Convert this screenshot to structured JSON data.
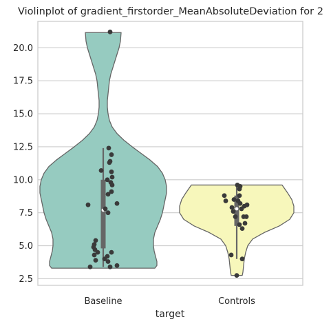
{
  "chart_data": {
    "type": "violin",
    "title": "Violinplot of gradient_firstorder_MeanAbsoluteDeviation for 2",
    "xlabel": "target",
    "ylabel": "",
    "ylim": [
      2.0,
      22.0
    ],
    "yticks": [
      2.5,
      5.0,
      7.5,
      10.0,
      12.5,
      15.0,
      17.5,
      20.0
    ],
    "ytick_labels": [
      "2.5",
      "5.0",
      "7.5",
      "10.0",
      "12.5",
      "15.0",
      "17.5",
      "20.0"
    ],
    "grid": true,
    "categories": [
      "Baseline",
      "Controls"
    ],
    "colors": {
      "Baseline": "#96cbc0",
      "Controls": "#f7f7bb",
      "edge": "#666666",
      "box": "#666666",
      "points": "#3a3a3a",
      "grid": "#cccccc",
      "frame": "#cccccc"
    },
    "series": [
      {
        "name": "Baseline",
        "box": {
          "whisker_low": 3.4,
          "q1": 4.8,
          "median": 7.7,
          "q3": 10.0,
          "whisker_high": 12.4
        },
        "density": [
          [
            3.3,
            0.75
          ],
          [
            3.5,
            0.78
          ],
          [
            3.8,
            0.78
          ],
          [
            4.2,
            0.76
          ],
          [
            4.6,
            0.74
          ],
          [
            5.0,
            0.73
          ],
          [
            5.5,
            0.73
          ],
          [
            6.0,
            0.75
          ],
          [
            6.5,
            0.79
          ],
          [
            7.0,
            0.83
          ],
          [
            7.5,
            0.86
          ],
          [
            8.0,
            0.88
          ],
          [
            8.5,
            0.9
          ],
          [
            9.0,
            0.92
          ],
          [
            9.5,
            0.92
          ],
          [
            10.0,
            0.9
          ],
          [
            10.5,
            0.86
          ],
          [
            11.0,
            0.79
          ],
          [
            11.5,
            0.68
          ],
          [
            12.0,
            0.55
          ],
          [
            12.5,
            0.42
          ],
          [
            13.0,
            0.3
          ],
          [
            13.5,
            0.2
          ],
          [
            14.0,
            0.13
          ],
          [
            14.5,
            0.09
          ],
          [
            15.0,
            0.07
          ],
          [
            15.5,
            0.06
          ],
          [
            16.0,
            0.06
          ],
          [
            16.5,
            0.07
          ],
          [
            17.0,
            0.08
          ],
          [
            17.5,
            0.09
          ],
          [
            18.0,
            0.11
          ],
          [
            18.5,
            0.14
          ],
          [
            19.0,
            0.17
          ],
          [
            19.5,
            0.2
          ],
          [
            20.0,
            0.23
          ],
          [
            20.5,
            0.25
          ],
          [
            21.15,
            0.26
          ]
        ],
        "points": [
          {
            "x": 0.1,
            "y": 21.2
          },
          {
            "x": -0.22,
            "y": 8.1
          },
          {
            "x": -0.03,
            "y": 10.7
          },
          {
            "x": 0.08,
            "y": 12.4
          },
          {
            "x": 0.12,
            "y": 11.9
          },
          {
            "x": 0.1,
            "y": 11.4
          },
          {
            "x": 0.09,
            "y": 11.3
          },
          {
            "x": 0.12,
            "y": 10.6
          },
          {
            "x": 0.13,
            "y": 10.2
          },
          {
            "x": 0.06,
            "y": 10.0
          },
          {
            "x": 0.11,
            "y": 9.8
          },
          {
            "x": 0.13,
            "y": 9.6
          },
          {
            "x": 0.12,
            "y": 9.1
          },
          {
            "x": 0.07,
            "y": 8.9
          },
          {
            "x": 0.2,
            "y": 8.2
          },
          {
            "x": 0.03,
            "y": 7.8
          },
          {
            "x": 0.07,
            "y": 7.5
          },
          {
            "x": -0.11,
            "y": 5.4
          },
          {
            "x": -0.13,
            "y": 5.1
          },
          {
            "x": -0.14,
            "y": 4.9
          },
          {
            "x": -0.12,
            "y": 4.7
          },
          {
            "x": -0.08,
            "y": 4.5
          },
          {
            "x": 0.12,
            "y": 4.5
          },
          {
            "x": -0.13,
            "y": 4.3
          },
          {
            "x": 0.06,
            "y": 4.2
          },
          {
            "x": 0.02,
            "y": 4.0
          },
          {
            "x": -0.11,
            "y": 3.9
          },
          {
            "x": 0.07,
            "y": 3.8
          },
          {
            "x": -0.19,
            "y": 3.4
          },
          {
            "x": 0.2,
            "y": 3.5
          },
          {
            "x": 0.1,
            "y": 3.4
          }
        ]
      },
      {
        "name": "Controls",
        "box": {
          "whisker_low": 4.0,
          "q1": 6.5,
          "median": 7.8,
          "q3": 8.8,
          "whisker_high": 9.6
        },
        "density": [
          [
            2.75,
            0.08
          ],
          [
            3.0,
            0.09
          ],
          [
            3.5,
            0.1
          ],
          [
            4.0,
            0.11
          ],
          [
            4.5,
            0.13
          ],
          [
            5.0,
            0.16
          ],
          [
            5.5,
            0.23
          ],
          [
            6.0,
            0.4
          ],
          [
            6.5,
            0.62
          ],
          [
            7.0,
            0.77
          ],
          [
            7.5,
            0.83
          ],
          [
            8.0,
            0.83
          ],
          [
            8.5,
            0.8
          ],
          [
            9.0,
            0.74
          ],
          [
            9.3,
            0.7
          ],
          [
            9.6,
            0.66
          ]
        ],
        "points": [
          {
            "x": 0.0,
            "y": 2.75
          },
          {
            "x": -0.08,
            "y": 4.3
          },
          {
            "x": 0.08,
            "y": 4.0
          },
          {
            "x": 0.08,
            "y": 6.3
          },
          {
            "x": 0.04,
            "y": 6.6
          },
          {
            "x": 0.12,
            "y": 6.7
          },
          {
            "x": 0.1,
            "y": 7.2
          },
          {
            "x": 0.14,
            "y": 7.2
          },
          {
            "x": -0.02,
            "y": 7.2
          },
          {
            "x": -0.05,
            "y": 7.6
          },
          {
            "x": 0.07,
            "y": 7.8
          },
          {
            "x": -0.07,
            "y": 7.9
          },
          {
            "x": 0.11,
            "y": 8.0
          },
          {
            "x": 0.15,
            "y": 8.1
          },
          {
            "x": 0.05,
            "y": 8.2
          },
          {
            "x": -0.16,
            "y": 8.4
          },
          {
            "x": 0.02,
            "y": 8.4
          },
          {
            "x": -0.04,
            "y": 8.5
          },
          {
            "x": 0.04,
            "y": 8.8
          },
          {
            "x": -0.18,
            "y": 8.8
          },
          {
            "x": 0.04,
            "y": 9.3
          },
          {
            "x": 0.05,
            "y": 9.5
          },
          {
            "x": 0.01,
            "y": 9.6
          }
        ]
      }
    ]
  }
}
